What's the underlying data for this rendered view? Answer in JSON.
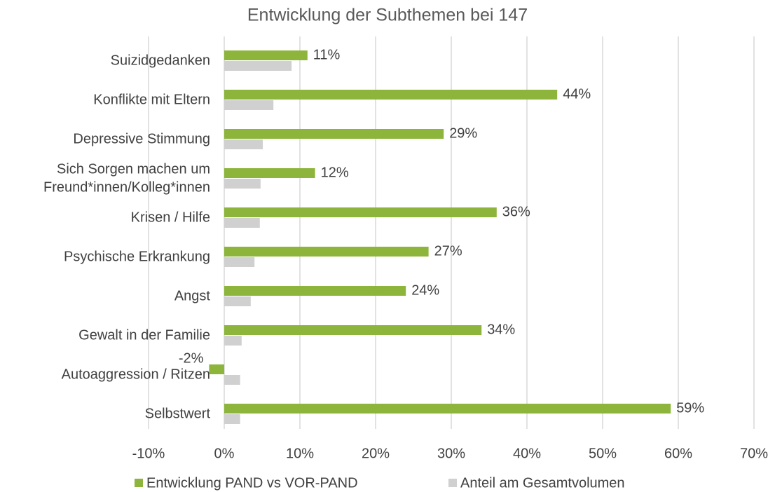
{
  "chart_data": {
    "type": "bar",
    "orientation": "horizontal",
    "title": "Entwicklung der Subthemen bei 147",
    "categories": [
      "Suizidgedanken",
      "Konflikte mit Eltern",
      "Depressive Stimmung",
      [
        "Sich Sorgen machen um",
        "Freund*innen/Kolleg*innen"
      ],
      "Krisen / Hilfe",
      "Psychische Erkrankung",
      "Angst",
      "Gewalt in der Familie",
      "Autoaggression / Ritzen",
      "Selbstwert"
    ],
    "series": [
      {
        "name": "Entwicklung PAND vs VOR-PAND",
        "color": "#8db53c",
        "values": [
          11,
          44,
          29,
          12,
          36,
          27,
          24,
          34,
          -2,
          59
        ],
        "value_labels": [
          "11%",
          "44%",
          "29%",
          "12%",
          "36%",
          "27%",
          "24%",
          "34%",
          "-2%",
          "59%"
        ]
      },
      {
        "name": "Anteil am Gesamtvolumen",
        "color": "#d0d0d0",
        "values": [
          8.9,
          6.5,
          5.1,
          4.8,
          4.7,
          4.0,
          3.5,
          2.3,
          2.1,
          2.1
        ]
      }
    ],
    "xlim": [
      -10,
      70
    ],
    "xticks": [
      {
        "value": -10,
        "label": "-10%"
      },
      {
        "value": 0,
        "label": "0%"
      },
      {
        "value": 10,
        "label": "10%"
      },
      {
        "value": 20,
        "label": "20%"
      },
      {
        "value": 30,
        "label": "30%"
      },
      {
        "value": 40,
        "label": "40%"
      },
      {
        "value": 50,
        "label": "50%"
      },
      {
        "value": 60,
        "label": "60%"
      },
      {
        "value": 70,
        "label": "70%"
      }
    ],
    "grid": true,
    "legend": "bottom"
  }
}
